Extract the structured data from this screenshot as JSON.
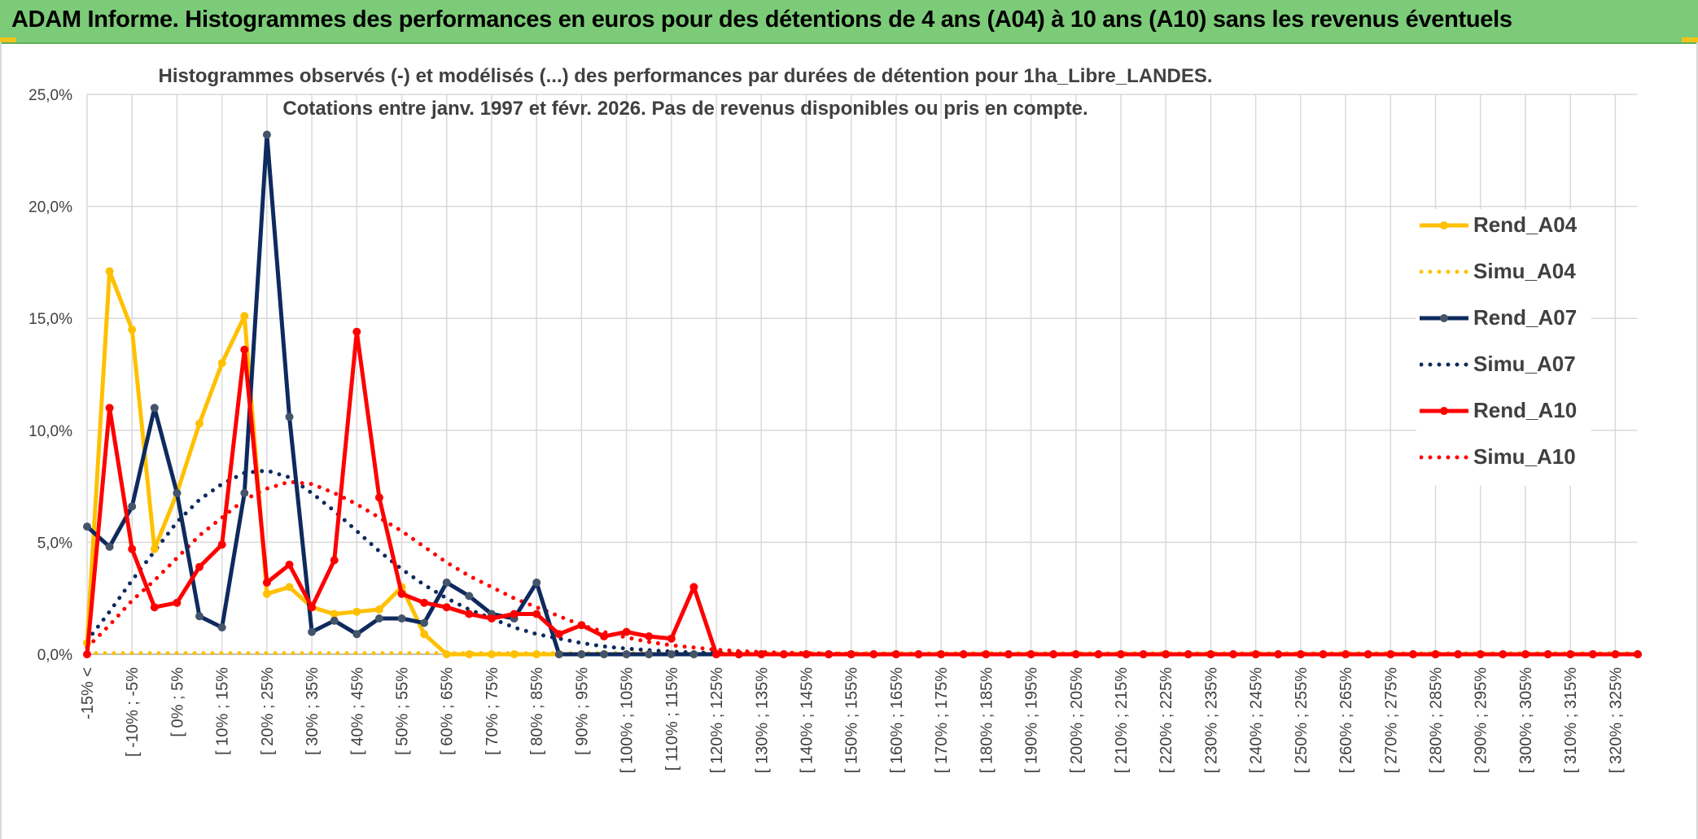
{
  "banner": {
    "title": "ADAM Informe. Histogrammes des performances en euros pour des détentions de 4 ans (A04) à 10 ans (A10) sans les revenus éventuels"
  },
  "colors": {
    "banner_bg": "#7ccb78",
    "A04": "#ffc000",
    "A07": "#0e2a5e",
    "A10": "#ff0000",
    "A07_marker": "#44546a",
    "grid": "#d9d9d9"
  },
  "chart_data": {
    "type": "line",
    "title_line1": "Histogrammes observés (-) et modélisés (...) des performances par durées de détention pour 1ha_Libre_LANDES.",
    "title_line2": "Cotations entre janv. 1997 et févr. 2026. Pas de revenus disponibles ou pris en compte.",
    "ylim": [
      0,
      25
    ],
    "y_ticks": [
      "0,0%",
      "5,0%",
      "10,0%",
      "15,0%",
      "20,0%",
      "25,0%"
    ],
    "y_tick_values": [
      0,
      5,
      10,
      15,
      20,
      25
    ],
    "grid": true,
    "legend_position": "right",
    "x_tick_labels": [
      "-15% <",
      "[ -10% ; -5%",
      "[ 0% ; 5%",
      "[ 10% ; 15%",
      "[ 20% ; 25%",
      "[ 30% ; 35%",
      "[ 40% ; 45%",
      "[ 50% ; 55%",
      "[ 60% ; 65%",
      "[ 70% ; 75%",
      "[ 80% ; 85%",
      "[ 90% ; 95%",
      "[ 100% ; 105%",
      "[ 110% ; 115%",
      "[ 120% ; 125%",
      "[ 130% ; 135%",
      "[ 140% ; 145%",
      "[ 150% ; 155%",
      "[ 160% ; 165%",
      "[ 170% ; 175%",
      "[ 180% ; 185%",
      "[ 190% ; 195%",
      "[ 200% ; 205%",
      "[ 210% ; 215%",
      "[ 220% ; 225%",
      "[ 230% ; 235%",
      "[ 240% ; 245%",
      "[ 250% ; 255%",
      "[ 260% ; 265%",
      "[ 270% ; 275%",
      "[ 280% ; 285%",
      "[ 290% ; 295%",
      "[ 300% ; 305%",
      "[ 310% ; 315%",
      "[ 320% ; 325%"
    ],
    "series": [
      {
        "name": "Rend_A04",
        "style": "solid",
        "color": "#ffc000",
        "values": [
          0.5,
          17.1,
          14.5,
          4.7,
          7.2,
          10.3,
          13.0,
          15.1,
          2.7,
          3.0,
          2.1,
          1.8,
          1.9,
          2.0,
          3.0,
          0.9,
          0,
          0,
          0,
          0,
          0,
          0,
          0,
          0,
          0,
          0,
          0,
          0,
          0,
          0,
          0,
          0,
          0,
          0,
          0,
          0,
          0,
          0,
          0,
          0,
          0,
          0,
          0,
          0,
          0,
          0,
          0,
          0,
          0,
          0,
          0,
          0,
          0,
          0,
          0,
          0,
          0,
          0,
          0,
          0,
          0,
          0,
          0,
          0,
          0,
          0,
          0,
          0,
          0,
          0
        ]
      },
      {
        "name": "Simu_A04",
        "style": "dotted",
        "color": "#ffc000",
        "values": [
          0.05,
          0.05,
          0.05,
          0.05,
          0.05,
          0.05,
          0.05,
          0.05,
          0.05,
          0.05,
          0.05,
          0.05,
          0.05,
          0.05,
          0.05,
          0.05,
          0.05,
          0.05,
          0.05,
          0.05,
          0.05,
          0.05,
          0.05,
          0.05,
          0.05,
          0.05,
          0.05,
          0.05,
          0.05,
          0.05,
          0.05,
          0.05,
          0.05,
          0.05,
          0.05,
          0.05,
          0.05,
          0.05,
          0.05,
          0.05,
          0.05,
          0.05,
          0.05,
          0.05,
          0.05,
          0.05,
          0.05,
          0.05,
          0.05,
          0.05,
          0.05,
          0.05,
          0.05,
          0.05,
          0.05,
          0.05,
          0.05,
          0.05,
          0.05,
          0.05,
          0.05,
          0.05,
          0.05,
          0.05,
          0.05,
          0.05,
          0.05,
          0.05,
          0.05,
          0.05
        ]
      },
      {
        "name": "Rend_A07",
        "style": "solid",
        "color": "#0e2a5e",
        "values": [
          5.7,
          4.8,
          6.6,
          11.0,
          7.2,
          1.7,
          1.2,
          7.2,
          23.2,
          10.6,
          1.0,
          1.5,
          0.9,
          1.6,
          1.6,
          1.4,
          3.2,
          2.6,
          1.8,
          1.6,
          3.2,
          0,
          0,
          0,
          0,
          0,
          0,
          0,
          0,
          0,
          0,
          0,
          0,
          0,
          0,
          0,
          0,
          0,
          0,
          0,
          0,
          0,
          0,
          0,
          0,
          0,
          0,
          0,
          0,
          0,
          0,
          0,
          0,
          0,
          0,
          0,
          0,
          0,
          0,
          0,
          0,
          0,
          0,
          0,
          0,
          0,
          0,
          0,
          0,
          0
        ]
      },
      {
        "name": "Simu_A07",
        "style": "dotted",
        "color": "#0e2a5e",
        "values": [
          0.6,
          1.9,
          3.3,
          4.6,
          5.9,
          6.9,
          7.6,
          8.1,
          8.2,
          7.9,
          7.2,
          6.4,
          5.5,
          4.6,
          3.8,
          3.1,
          2.5,
          2.0,
          1.6,
          1.2,
          0.9,
          0.7,
          0.5,
          0.35,
          0.25,
          0.18,
          0.12,
          0.08,
          0.05,
          0.03,
          0.02,
          0.01,
          0,
          0,
          0,
          0,
          0,
          0,
          0,
          0,
          0,
          0,
          0,
          0,
          0,
          0,
          0,
          0,
          0,
          0,
          0,
          0,
          0,
          0,
          0,
          0,
          0,
          0,
          0,
          0,
          0,
          0,
          0,
          0,
          0,
          0,
          0,
          0,
          0,
          0
        ]
      },
      {
        "name": "Rend_A10",
        "style": "solid",
        "color": "#ff0000",
        "values": [
          0,
          11.0,
          4.7,
          2.1,
          2.3,
          3.9,
          4.9,
          13.6,
          3.2,
          4.0,
          2.1,
          4.2,
          14.4,
          7.0,
          2.7,
          2.3,
          2.1,
          1.8,
          1.6,
          1.8,
          1.8,
          0.9,
          1.3,
          0.8,
          1.0,
          0.8,
          0.7,
          3.0,
          0,
          0,
          0,
          0,
          0,
          0,
          0,
          0,
          0,
          0,
          0,
          0,
          0,
          0,
          0,
          0,
          0,
          0,
          0,
          0,
          0,
          0,
          0,
          0,
          0,
          0,
          0,
          0,
          0,
          0,
          0,
          0,
          0,
          0,
          0,
          0,
          0,
          0,
          0,
          0,
          0,
          0
        ]
      },
      {
        "name": "Simu_A10",
        "style": "dotted",
        "color": "#ff0000",
        "values": [
          0.3,
          1.3,
          2.4,
          3.3,
          4.3,
          5.3,
          6.1,
          6.9,
          7.4,
          7.7,
          7.6,
          7.2,
          6.7,
          6.1,
          5.5,
          4.8,
          4.1,
          3.5,
          3.0,
          2.5,
          2.1,
          1.7,
          1.3,
          1.0,
          0.75,
          0.55,
          0.4,
          0.3,
          0.2,
          0.14,
          0.1,
          0.07,
          0.05,
          0.03,
          0.02,
          0.01,
          0,
          0,
          0,
          0,
          0,
          0,
          0,
          0,
          0,
          0,
          0,
          0,
          0,
          0,
          0,
          0,
          0,
          0,
          0,
          0,
          0,
          0,
          0,
          0,
          0,
          0,
          0,
          0,
          0,
          0,
          0,
          0,
          0,
          0
        ]
      }
    ]
  }
}
